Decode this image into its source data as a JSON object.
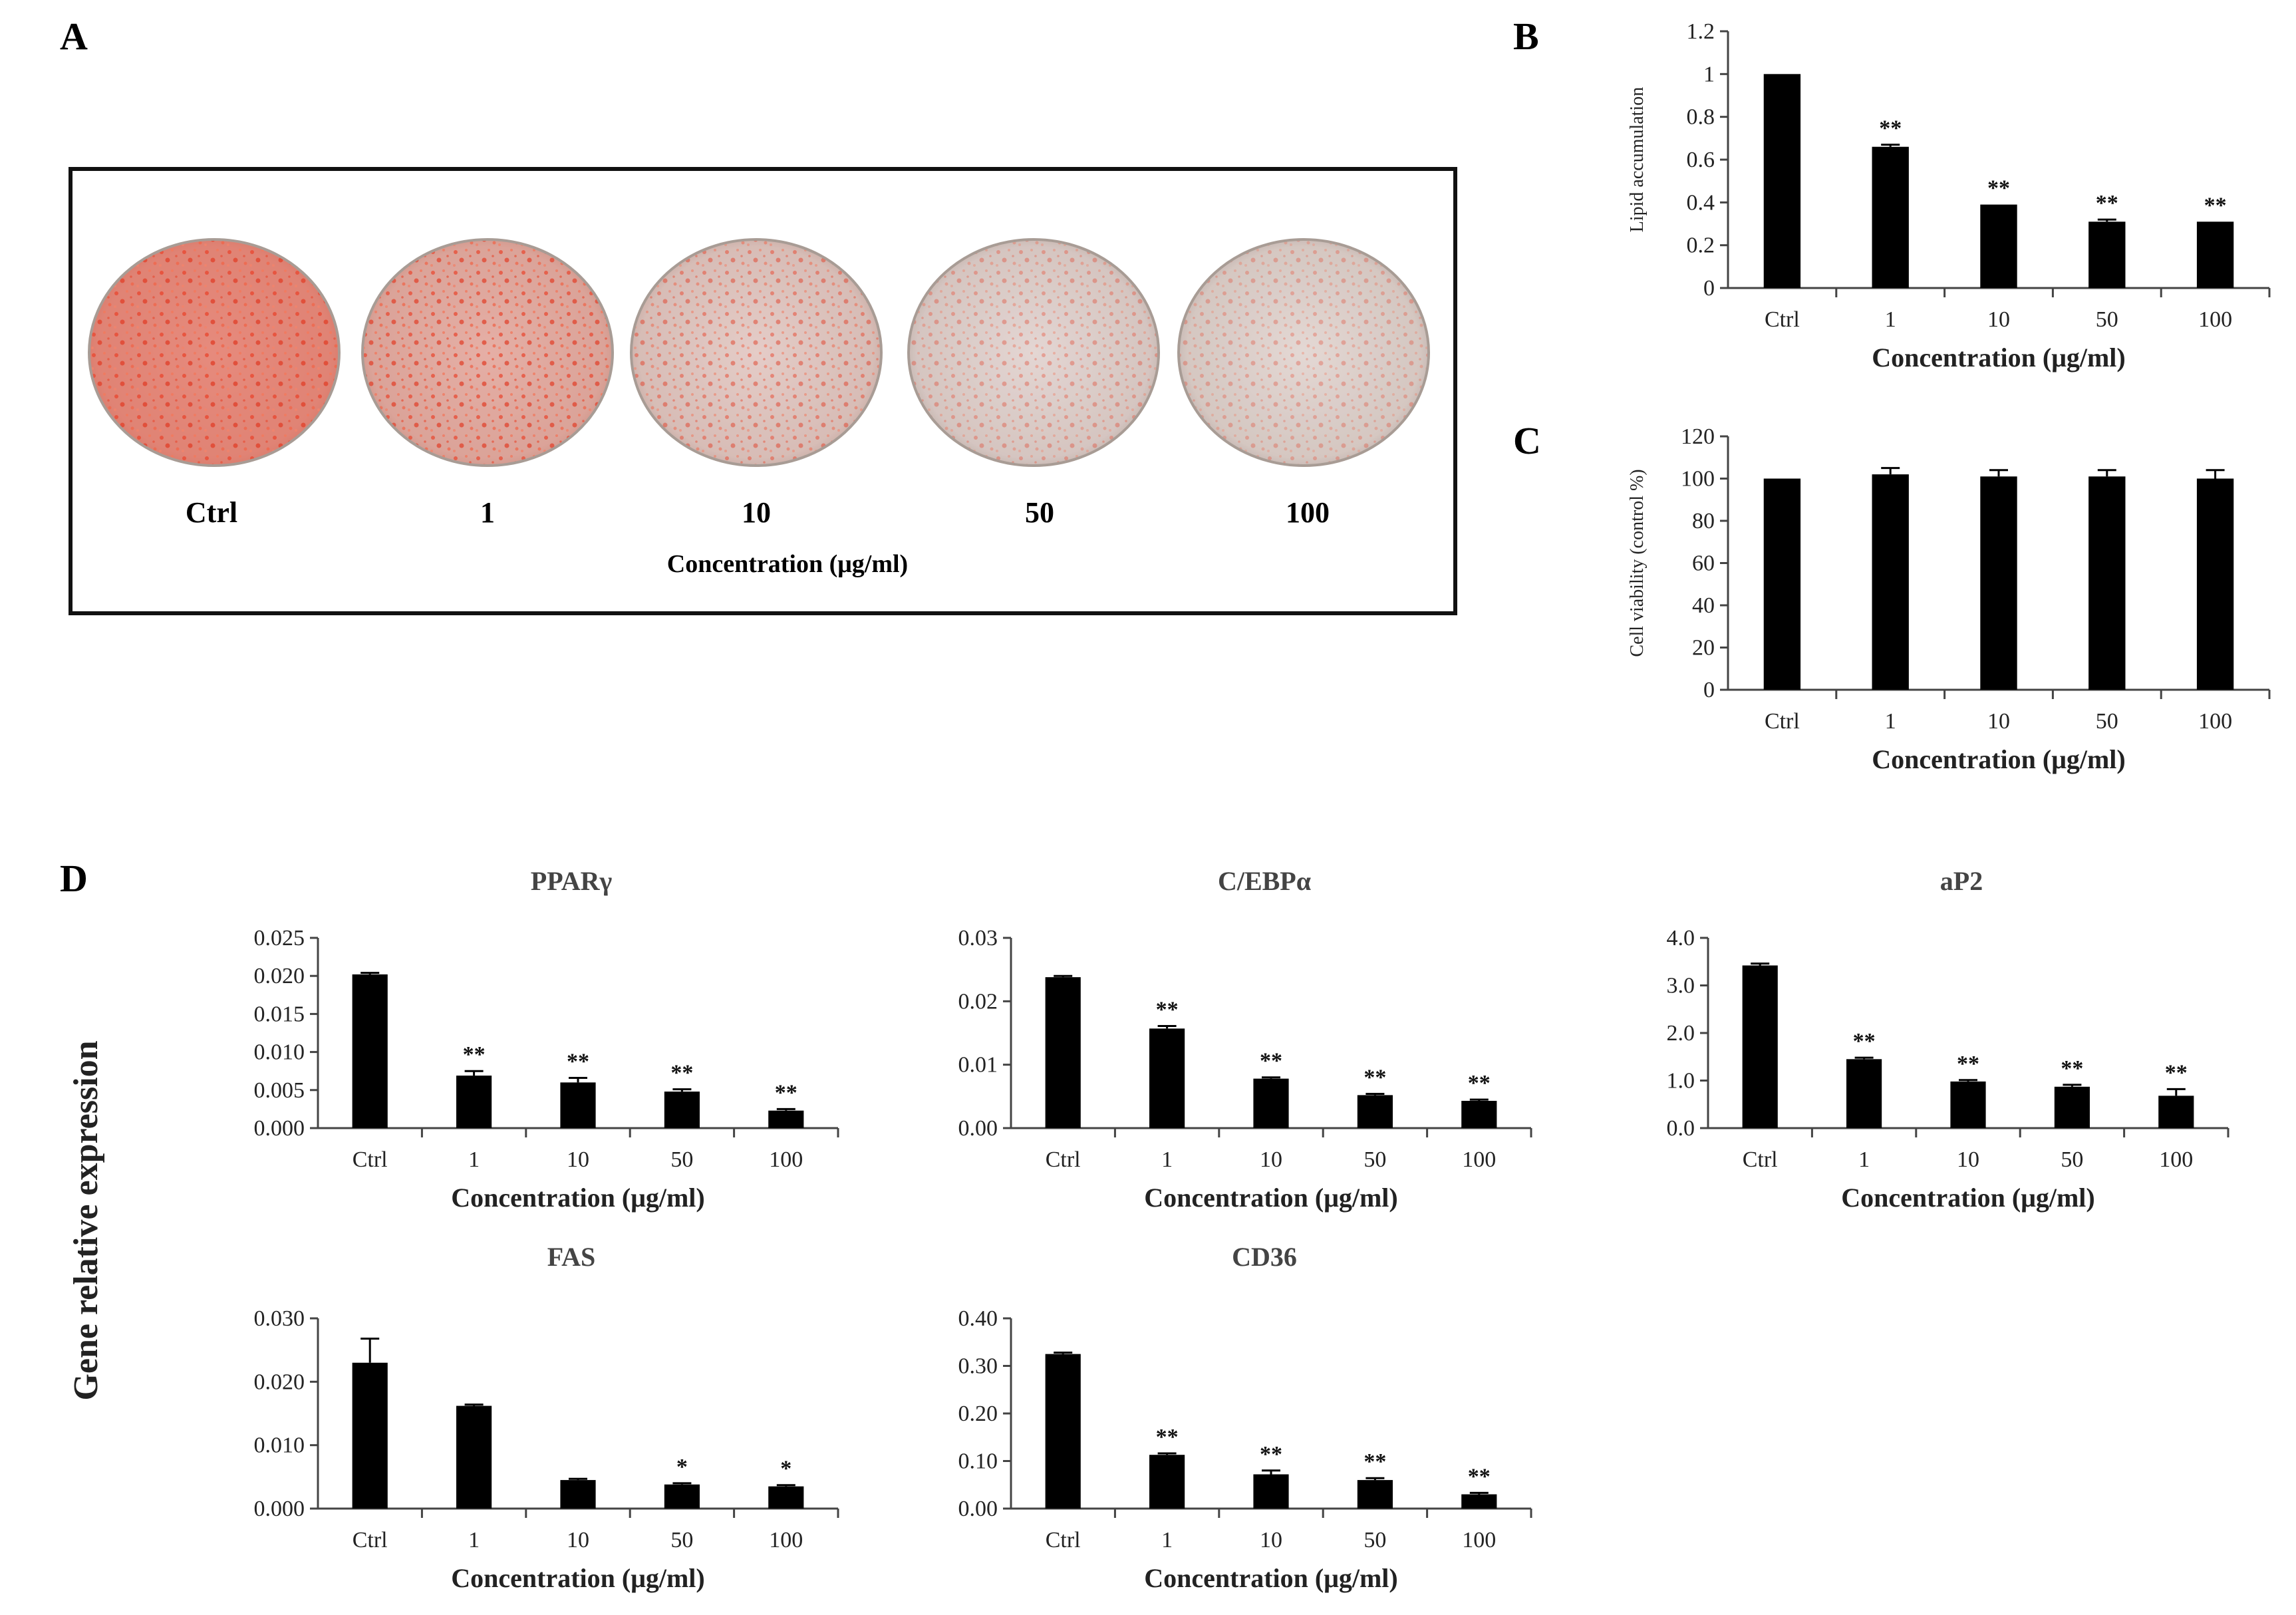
{
  "panels": {
    "A": "A",
    "B": "B",
    "C": "C",
    "D": "D"
  },
  "panel_a": {
    "plate_labels": [
      "Ctrl",
      "1",
      "10",
      "50",
      "100"
    ],
    "caption": "Concentration (μg/ml)",
    "stain_color": "#e8503a",
    "dish_color": "#d9d6d2"
  },
  "shared_ylabel": "Gene relative expression",
  "colors": {
    "bar": "#000000",
    "axis": "#444444",
    "text": "#222222"
  },
  "chart_data": [
    {
      "id": "B",
      "type": "bar",
      "title": "",
      "categories": [
        "Ctrl",
        "1",
        "10",
        "50",
        "100"
      ],
      "values": [
        1.0,
        0.66,
        0.39,
        0.31,
        0.31
      ],
      "errors": [
        0,
        0.01,
        0,
        0.01,
        0
      ],
      "sig": [
        "",
        "**",
        "**",
        "**",
        "**"
      ],
      "ylim": [
        0,
        1.2
      ],
      "yticks": [
        "0",
        "0.2",
        "0.4",
        "0.6",
        "0.8",
        "1",
        "1.2"
      ],
      "xlabel": "Concentration (μg/ml)",
      "ylabel": "Lipid accumulation"
    },
    {
      "id": "C",
      "type": "bar",
      "title": "",
      "categories": [
        "Ctrl",
        "1",
        "10",
        "50",
        "100"
      ],
      "values": [
        100,
        102,
        101,
        101,
        100
      ],
      "errors": [
        0,
        3,
        3,
        3,
        4
      ],
      "sig": [
        "",
        "",
        "",
        "",
        ""
      ],
      "ylim": [
        0,
        120
      ],
      "yticks": [
        "0",
        "20",
        "40",
        "60",
        "80",
        "100",
        "120"
      ],
      "xlabel": "Concentration (μg/ml)",
      "ylabel": "Cell viability (control %)"
    },
    {
      "id": "PPARg",
      "type": "bar",
      "title": "PPARγ",
      "categories": [
        "Ctrl",
        "1",
        "10",
        "50",
        "100"
      ],
      "values": [
        0.0202,
        0.0069,
        0.006,
        0.0048,
        0.0023
      ],
      "errors": [
        0.0002,
        0.0006,
        0.0006,
        0.0003,
        0.0002
      ],
      "sig": [
        "",
        "**",
        "**",
        "**",
        "**"
      ],
      "ylim": [
        0,
        0.025
      ],
      "yticks": [
        "0.000",
        "0.005",
        "0.010",
        "0.015",
        "0.020",
        "0.025"
      ],
      "xlabel": "Concentration (μg/ml)",
      "ylabel": ""
    },
    {
      "id": "CEBPa",
      "type": "bar",
      "title": "C/EBPα",
      "categories": [
        "Ctrl",
        "1",
        "10",
        "50",
        "100"
      ],
      "values": [
        0.0238,
        0.0157,
        0.0078,
        0.0052,
        0.0043
      ],
      "errors": [
        0.0002,
        0.0004,
        0.0002,
        0.0002,
        0.0002
      ],
      "sig": [
        "",
        "**",
        "**",
        "**",
        "**"
      ],
      "ylim": [
        0,
        0.03
      ],
      "yticks": [
        "0.00",
        "0.01",
        "0.02",
        "0.03"
      ],
      "xlabel": "Concentration (μg/ml)",
      "ylabel": ""
    },
    {
      "id": "aP2",
      "type": "bar",
      "title": "aP2",
      "categories": [
        "Ctrl",
        "1",
        "10",
        "50",
        "100"
      ],
      "values": [
        3.42,
        1.45,
        0.98,
        0.87,
        0.68
      ],
      "errors": [
        0.04,
        0.03,
        0.03,
        0.04,
        0.14
      ],
      "sig": [
        "",
        "**",
        "**",
        "**",
        "**"
      ],
      "ylim": [
        0,
        4.0
      ],
      "yticks": [
        "0.0",
        "1.0",
        "2.0",
        "3.0",
        "4.0"
      ],
      "xlabel": "Concentration (μg/ml)",
      "ylabel": ""
    },
    {
      "id": "FAS",
      "type": "bar",
      "title": "FAS",
      "categories": [
        "Ctrl",
        "1",
        "10",
        "50",
        "100"
      ],
      "values": [
        0.023,
        0.0162,
        0.0045,
        0.0038,
        0.0035
      ],
      "errors": [
        0.0038,
        0.0002,
        0.0002,
        0.0002,
        0.0002
      ],
      "sig": [
        "",
        "",
        "",
        "*",
        "*"
      ],
      "ylim": [
        0,
        0.03
      ],
      "yticks": [
        "0.000",
        "0.010",
        "0.020",
        "0.030"
      ],
      "xlabel": "Concentration (μg/ml)",
      "ylabel": ""
    },
    {
      "id": "CD36",
      "type": "bar",
      "title": "CD36",
      "categories": [
        "Ctrl",
        "1",
        "10",
        "50",
        "100"
      ],
      "values": [
        0.325,
        0.113,
        0.072,
        0.06,
        0.03
      ],
      "errors": [
        0.003,
        0.003,
        0.008,
        0.004,
        0.003
      ],
      "sig": [
        "",
        "**",
        "**",
        "**",
        "**"
      ],
      "ylim": [
        0,
        0.4
      ],
      "yticks": [
        "0.00",
        "0.10",
        "0.20",
        "0.30",
        "0.40"
      ],
      "xlabel": "Concentration (μg/ml)",
      "ylabel": ""
    }
  ]
}
